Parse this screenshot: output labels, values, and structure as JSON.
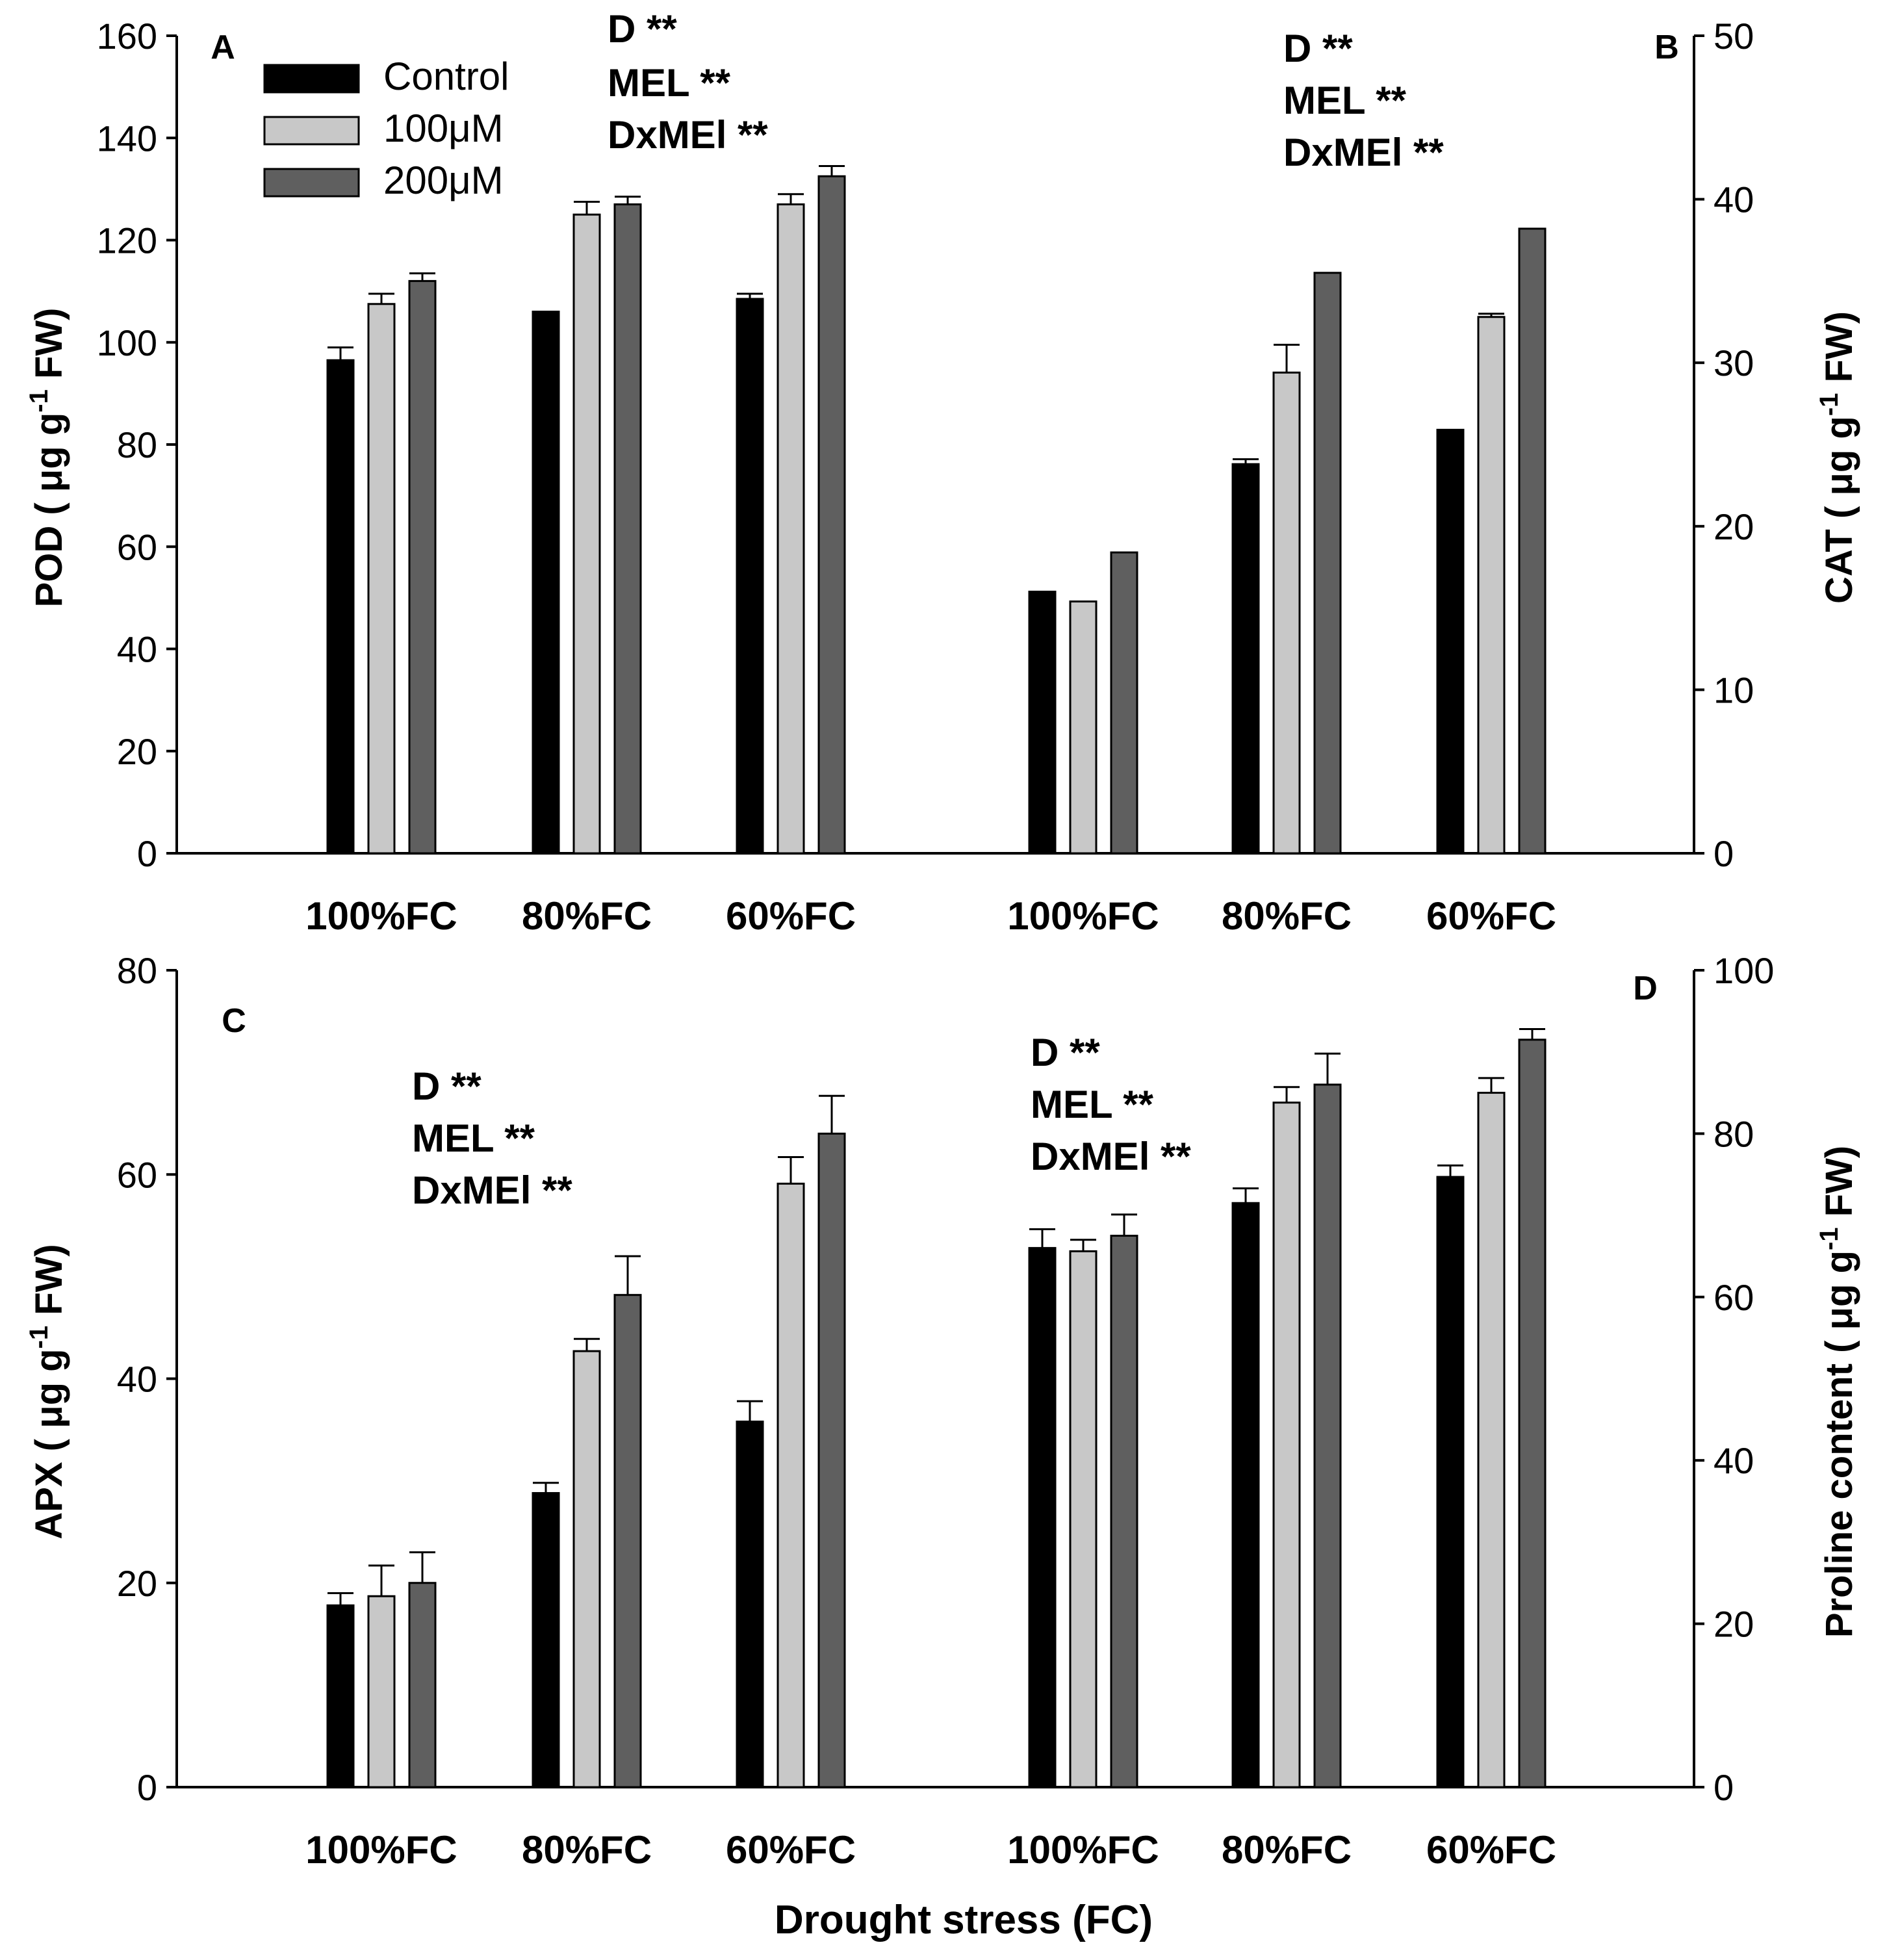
{
  "colors": {
    "control": "#000000",
    "um100": "#c8c8c8",
    "um200": "#5f5f5f"
  },
  "legend": [
    {
      "label": "Control",
      "color": "#000000"
    },
    {
      "label": "100μM",
      "color": "#c8c8c8"
    },
    {
      "label": "200μM",
      "color": "#5f5f5f"
    }
  ],
  "x_axis_title": "Drought stress (FC)",
  "chart_data": [
    {
      "type": "bar",
      "panel_left": "A",
      "panel_right": "B",
      "series_names": [
        "Control",
        "100μM",
        "200μM"
      ],
      "left_axis": {
        "label": "POD ( μg g-1 FW)",
        "label_main": "POD ( μg g",
        "label_sup": "-1",
        "label_end": " FW)",
        "ylim": [
          0,
          160
        ],
        "ticks": [
          0,
          20,
          40,
          60,
          80,
          100,
          120,
          140,
          160
        ]
      },
      "right_axis": {
        "label": "CAT ( μg g-1 FW)",
        "label_main": "CAT ( μg g",
        "label_sup": "-1",
        "label_end": " FW)",
        "ylim": [
          0,
          50
        ],
        "ticks": [
          0,
          10,
          20,
          30,
          40,
          50
        ]
      },
      "groups": [
        {
          "category": "100%FC",
          "axis": "left",
          "values": [
            96.5,
            107.5,
            112
          ],
          "errors": [
            2.5,
            2,
            1.5
          ]
        },
        {
          "category": "80%FC",
          "axis": "left",
          "values": [
            106,
            125,
            127
          ],
          "errors": [
            0,
            2.5,
            1.5
          ]
        },
        {
          "category": "60%FC",
          "axis": "left",
          "values": [
            108.5,
            127,
            132.5
          ],
          "errors": [
            1,
            2,
            2
          ]
        },
        {
          "category": "100%FC",
          "axis": "right",
          "values": [
            16,
            15.4,
            18.4
          ],
          "errors": [
            0,
            0,
            0
          ]
        },
        {
          "category": "80%FC",
          "axis": "right",
          "values": [
            23.8,
            29.4,
            35.5
          ],
          "errors": [
            0.3,
            1.7,
            0
          ]
        },
        {
          "category": "60%FC",
          "axis": "right",
          "values": [
            25.9,
            32.8,
            38.2
          ],
          "errors": [
            0,
            0.2,
            0
          ]
        }
      ],
      "annotations": [
        {
          "group": "left",
          "lines": [
            "D **",
            "MEL **",
            "DxMEl **"
          ]
        },
        {
          "group": "right",
          "lines": [
            "D **",
            "MEL **",
            "DxMEl **"
          ]
        }
      ]
    },
    {
      "type": "bar",
      "panel_left": "C",
      "panel_right": "D",
      "series_names": [
        "Control",
        "100μM",
        "200μM"
      ],
      "left_axis": {
        "label": "APX ( μg g-1 FW)",
        "label_main": "APX ( μg g",
        "label_sup": "-1",
        "label_end": " FW)",
        "ylim": [
          0,
          80
        ],
        "ticks": [
          0,
          20,
          40,
          60,
          80
        ]
      },
      "right_axis": {
        "label": "Proline content ( μg g-1 FW)",
        "label_main": "Proline content ( μg g",
        "label_sup": "-1",
        "label_end": " FW)",
        "ylim": [
          0,
          100
        ],
        "ticks": [
          0,
          20,
          40,
          60,
          80,
          100
        ]
      },
      "groups": [
        {
          "category": "100%FC",
          "axis": "left",
          "values": [
            17.8,
            18.7,
            20
          ],
          "errors": [
            1.2,
            3,
            3
          ]
        },
        {
          "category": "80%FC",
          "axis": "left",
          "values": [
            28.8,
            42.7,
            48.2
          ],
          "errors": [
            1,
            1.2,
            3.8
          ]
        },
        {
          "category": "60%FC",
          "axis": "left",
          "values": [
            35.8,
            59.1,
            64
          ],
          "errors": [
            2,
            2.6,
            3.7
          ]
        },
        {
          "category": "100%FC",
          "axis": "right",
          "values": [
            66,
            65.6,
            67.5
          ],
          "errors": [
            2.3,
            1.4,
            2.6
          ]
        },
        {
          "category": "80%FC",
          "axis": "right",
          "values": [
            71.5,
            83.8,
            86
          ],
          "errors": [
            1.8,
            1.9,
            3.8
          ]
        },
        {
          "category": "60%FC",
          "axis": "right",
          "values": [
            74.7,
            85,
            91.5
          ],
          "errors": [
            1.4,
            1.8,
            1.3
          ]
        }
      ],
      "annotations": [
        {
          "group": "left",
          "lines": [
            "D **",
            "MEL **",
            "DxMEl **"
          ]
        },
        {
          "group": "right",
          "lines": [
            "D **",
            "MEL **",
            "DxMEl **"
          ]
        }
      ]
    }
  ]
}
